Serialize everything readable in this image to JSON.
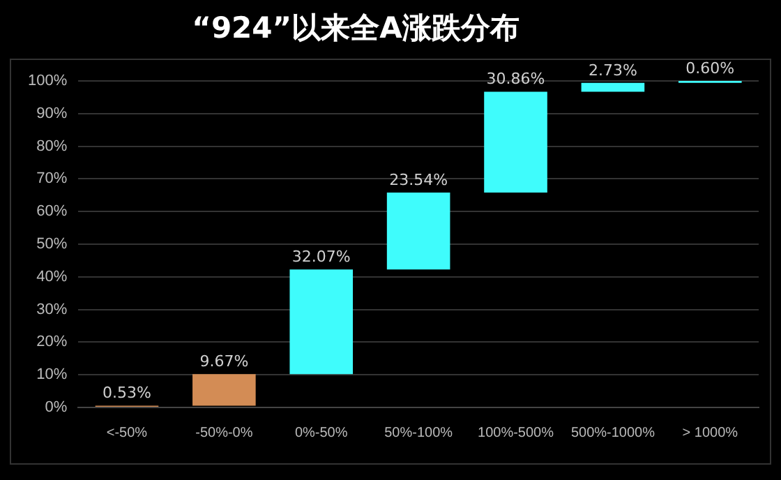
{
  "chart_data": {
    "type": "bar",
    "title": "“924”以来全A涨跌分布",
    "categories": [
      "<-50%",
      "-50%-0%",
      "0%-50%",
      "50%-100%",
      "100%-500%",
      "500%-1000%",
      "> 1000%"
    ],
    "values": [
      0.53,
      9.67,
      32.07,
      23.54,
      30.86,
      2.73,
      0.6
    ],
    "base": [
      0,
      0.53,
      10.2,
      42.27,
      65.81,
      96.67,
      99.4
    ],
    "colors": [
      "#d38c55",
      "#d38c55",
      "#3ffcfc",
      "#3ffcfc",
      "#3ffcfc",
      "#3ffcfc",
      "#3ffcfc"
    ],
    "value_labels": [
      "0.53%",
      "9.67%",
      "32.07%",
      "23.54%",
      "30.86%",
      "2.73%",
      "0.60%"
    ],
    "ylim": [
      0,
      100
    ],
    "yticks": [
      {
        "value": 0,
        "label": "0%"
      },
      {
        "value": 10,
        "label": "10%"
      },
      {
        "value": 20,
        "label": "20%"
      },
      {
        "value": 30,
        "label": "30%"
      },
      {
        "value": 40,
        "label": "40%"
      },
      {
        "value": 50,
        "label": "50%"
      },
      {
        "value": 60,
        "label": "60%"
      },
      {
        "value": 70,
        "label": "70%"
      },
      {
        "value": 80,
        "label": "80%"
      },
      {
        "value": 90,
        "label": "90%"
      },
      {
        "value": 100,
        "label": "100%"
      }
    ],
    "grid": "y",
    "legend": false
  }
}
